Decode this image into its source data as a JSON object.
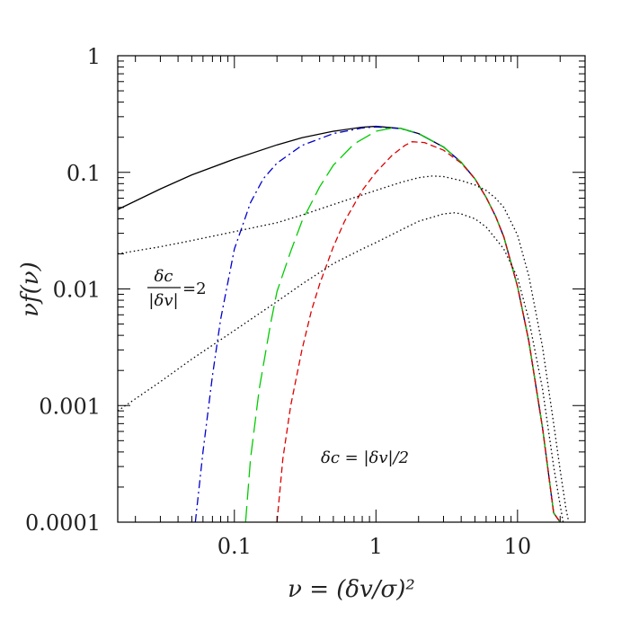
{
  "chart_data": {
    "type": "line",
    "x_scale": "log",
    "y_scale": "log",
    "xlim": [
      0.015,
      30
    ],
    "ylim": [
      0.0001,
      1
    ],
    "grid": false,
    "legend": "none",
    "xlabel": "ν = (δv/σ)²",
    "ylabel": "νf(ν)",
    "x_tick_labels": [
      "0.1",
      "1",
      "10"
    ],
    "y_tick_labels": [
      "0.0001",
      "0.001",
      "0.01",
      "0.1",
      "1"
    ],
    "annotations": {
      "ratio": {
        "num": "δc",
        "den": "|δv|",
        "value": "=2"
      },
      "equation": "δc = |δv|/2"
    },
    "series": [
      {
        "style": "solid",
        "color": "#000000",
        "x": [
          0.015,
          0.03,
          0.05,
          0.1,
          0.2,
          0.3,
          0.5,
          0.8,
          1.0,
          1.5,
          2,
          3,
          4,
          5,
          6,
          7,
          8,
          10,
          12,
          15,
          18,
          20
        ],
        "y": [
          0.048,
          0.072,
          0.095,
          0.13,
          0.172,
          0.198,
          0.225,
          0.244,
          0.248,
          0.238,
          0.215,
          0.165,
          0.122,
          0.088,
          0.061,
          0.042,
          0.028,
          0.0105,
          0.0036,
          0.00065,
          0.00012,
          0.0001
        ]
      },
      {
        "style": "dot-dash",
        "color": "#0000cc",
        "x": [
          0.053,
          0.06,
          0.07,
          0.08,
          0.1,
          0.13,
          0.16,
          0.2,
          0.3,
          0.5,
          0.8,
          1.0,
          1.5,
          2,
          3,
          4,
          5,
          6,
          7,
          8,
          10,
          12,
          15,
          18,
          20
        ],
        "y": [
          0.0001,
          0.0004,
          0.0018,
          0.0055,
          0.022,
          0.055,
          0.088,
          0.12,
          0.17,
          0.215,
          0.24,
          0.245,
          0.237,
          0.215,
          0.165,
          0.122,
          0.088,
          0.061,
          0.042,
          0.028,
          0.0105,
          0.0036,
          0.00065,
          0.00012,
          0.0001
        ]
      },
      {
        "style": "long-dash",
        "color": "#00cc00",
        "x": [
          0.12,
          0.13,
          0.15,
          0.18,
          0.2,
          0.25,
          0.3,
          0.4,
          0.5,
          0.7,
          1.0,
          1.3,
          1.5,
          2,
          3,
          4,
          5,
          6,
          7,
          8,
          10,
          12,
          15,
          18,
          20
        ],
        "y": [
          0.0001,
          0.00035,
          0.0014,
          0.005,
          0.0095,
          0.021,
          0.038,
          0.075,
          0.115,
          0.175,
          0.225,
          0.24,
          0.238,
          0.215,
          0.165,
          0.122,
          0.088,
          0.061,
          0.042,
          0.028,
          0.0105,
          0.0036,
          0.00065,
          0.00012,
          0.0001
        ]
      },
      {
        "style": "short-dash",
        "color": "#dd0000",
        "x": [
          0.2,
          0.22,
          0.25,
          0.3,
          0.35,
          0.4,
          0.5,
          0.6,
          0.8,
          1.0,
          1.3,
          1.6,
          1.8,
          2.2,
          3,
          4,
          5,
          6,
          7,
          8,
          10,
          12,
          15,
          18,
          20
        ],
        "y": [
          0.0001,
          0.00035,
          0.001,
          0.003,
          0.0065,
          0.011,
          0.023,
          0.038,
          0.07,
          0.1,
          0.14,
          0.17,
          0.183,
          0.18,
          0.155,
          0.12,
          0.088,
          0.061,
          0.042,
          0.028,
          0.0105,
          0.0036,
          0.00065,
          0.00012,
          0.0001
        ]
      },
      {
        "style": "dotted",
        "color": "#000000",
        "x": [
          0.015,
          0.03,
          0.05,
          0.1,
          0.2,
          0.3,
          0.5,
          0.8,
          1.0,
          1.5,
          2,
          2.5,
          3,
          4,
          5,
          6,
          7,
          8,
          10,
          12,
          15,
          18,
          20,
          22,
          23
        ],
        "y": [
          0.02,
          0.023,
          0.026,
          0.031,
          0.037,
          0.043,
          0.053,
          0.064,
          0.07,
          0.082,
          0.09,
          0.093,
          0.092,
          0.085,
          0.078,
          0.07,
          0.06,
          0.05,
          0.029,
          0.013,
          0.0032,
          0.0007,
          0.00028,
          0.00013,
          0.0001
        ]
      },
      {
        "style": "dotted",
        "color": "#000000",
        "x": [
          0.015,
          0.03,
          0.05,
          0.1,
          0.2,
          0.3,
          0.5,
          0.8,
          1.0,
          1.5,
          2,
          3,
          3.6,
          4,
          5,
          6,
          7,
          8,
          10,
          12,
          15,
          18,
          20,
          21
        ],
        "y": [
          0.0009,
          0.0016,
          0.0025,
          0.0044,
          0.0078,
          0.011,
          0.0165,
          0.022,
          0.025,
          0.032,
          0.038,
          0.044,
          0.045,
          0.044,
          0.04,
          0.034,
          0.027,
          0.022,
          0.0125,
          0.0055,
          0.0014,
          0.0003,
          0.00014,
          0.0001
        ]
      }
    ]
  }
}
